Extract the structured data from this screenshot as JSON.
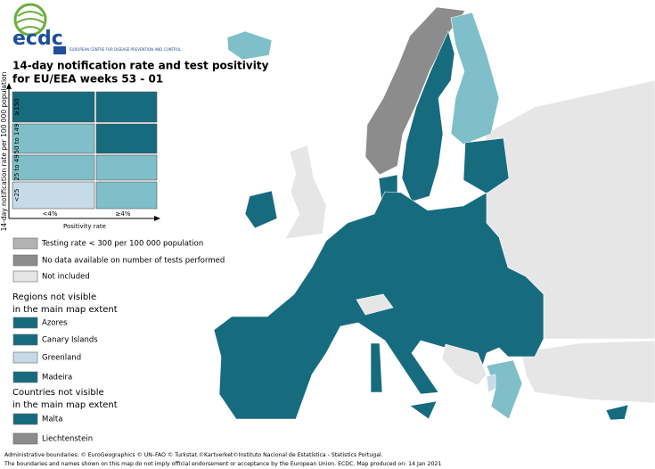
{
  "header": {
    "logo": "ecdc",
    "logo_subtitle": "EUROPEAN CENTRE FOR DISEASE PREVENTION AND CONTROL",
    "title": [
      "14-day notification rate and test positivity",
      "for EU/EEA weeks 53 - 01"
    ]
  },
  "matrix": {
    "y_label": "14-day notification rate per 100 000 population",
    "rows": [
      "≥150",
      "50 to 149",
      "25 to 49",
      "<25"
    ],
    "columns": [
      "<4%",
      "≥4%"
    ],
    "x_label": "Positivity rate",
    "cells": [
      [
        "#176b7f",
        "#176b7f"
      ],
      [
        "#7fbfc9",
        "#176b7f"
      ],
      [
        "#7fbfc9",
        "#7fbfc9"
      ],
      [
        "#c5dbe8",
        "#7fbfc9"
      ]
    ]
  },
  "legend": {
    "items": [
      {
        "label": "Testing rate < 300 per 100 000 population",
        "color": "#b3b3b3"
      },
      {
        "label": "No data available on number of tests performed",
        "color": "#8c8c8c"
      },
      {
        "label": "Not included",
        "color": "#e6e6e6"
      }
    ],
    "regions": {
      "heading": [
        "Regions not visible",
        "in the main map extent"
      ],
      "items": [
        {
          "label": "Azores",
          "color": "#176b7f"
        },
        {
          "label": "Canary Islands",
          "color": "#176b7f"
        },
        {
          "label": "Greenland",
          "color": "#c5dbe8"
        },
        {
          "label": "Madeira",
          "color": "#176b7f"
        }
      ]
    },
    "countries": {
      "heading": [
        "Countries not visible",
        "in the main map extent"
      ],
      "items": [
        {
          "label": "Malta",
          "color": "#176b7f"
        },
        {
          "label": "Liechtenstein",
          "color": "#8c8c8c"
        }
      ]
    }
  },
  "footer": [
    "Administrative boundaries: © EuroGeographics © UN–FAO © Turkstat.©Kartverket©Instituto Nacional de Estatística - Statistics Portugal.",
    "The boundaries and names shown on this map do not imply official endorsement or acceptance by the European Union. ECDC. Map produced on: 14 Jan 2021"
  ]
}
